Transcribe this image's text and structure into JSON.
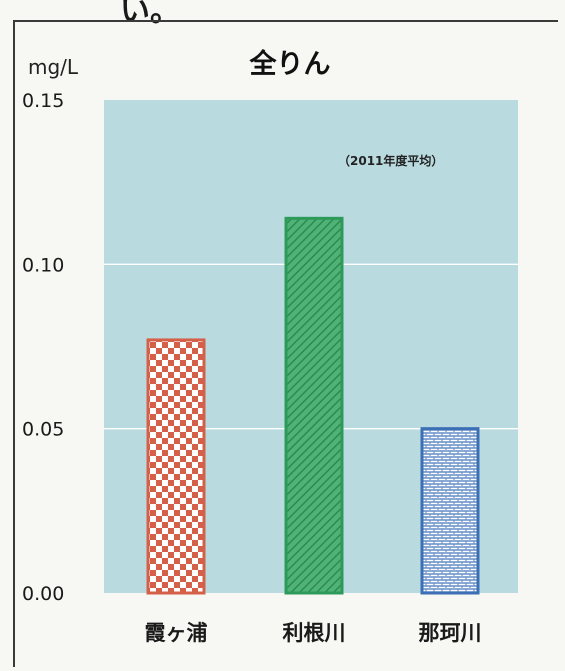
{
  "header_fragment": "い。",
  "chart_data": {
    "type": "bar",
    "title": "全りん",
    "ylabel": "mg/L",
    "note": "（2011年度平均）",
    "categories": [
      "霞ヶ浦",
      "利根川",
      "那珂川"
    ],
    "values": [
      0.077,
      0.114,
      0.05
    ],
    "ylim": [
      0,
      0.15
    ],
    "yticks": [
      "0.00",
      "0.05",
      "0.10",
      "0.15"
    ],
    "ytick_values": [
      0,
      0.05,
      0.1,
      0.15
    ],
    "grid": true,
    "colors": {
      "plot_background": "#b9dbe0",
      "bars": [
        "#d4604a",
        "#2e9a5a",
        "#3c6fb5"
      ]
    }
  }
}
